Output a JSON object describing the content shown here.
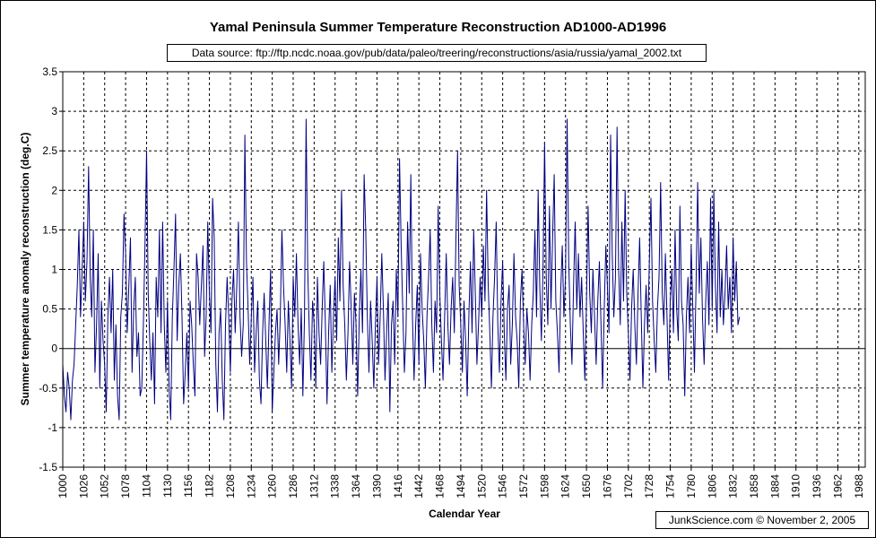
{
  "chart_data": {
    "type": "line",
    "title": "Yamal Peninsula Summer Temperature Reconstruction AD1000-AD1996",
    "data_source": "Data source: ftp://ftp.ncdc.noaa.gov/pub/data/paleo/treering/reconstructions/asia/russia/yamal_2002.txt",
    "credit": "JunkScience.com ©  November 2, 2005",
    "xlabel": "Calendar Year",
    "ylabel": "Summer temperature anomaly reconstruction (deg.C)",
    "xlim": [
      1000,
      1996
    ],
    "ylim": [
      -1.5,
      3.5
    ],
    "yticks": [
      -1.5,
      -1,
      -0.5,
      0,
      0.5,
      1,
      1.5,
      2,
      2.5,
      3,
      3.5
    ],
    "ytick_labels": [
      "-1.5",
      "-1",
      "-0.5",
      "0",
      "0.5",
      "1",
      "1.5",
      "2",
      "2.5",
      "3",
      "3.5"
    ],
    "xticks": [
      1000,
      1026,
      1052,
      1078,
      1104,
      1130,
      1156,
      1182,
      1208,
      1234,
      1260,
      1286,
      1312,
      1338,
      1364,
      1390,
      1416,
      1442,
      1468,
      1494,
      1520,
      1546,
      1572,
      1598,
      1624,
      1650,
      1676,
      1702,
      1728,
      1754,
      1780,
      1806,
      1832,
      1858,
      1884,
      1910,
      1936,
      1962,
      1988
    ],
    "xtick_labels": [
      "1000",
      "1026",
      "1052",
      "1078",
      "1104",
      "1130",
      "1156",
      "1182",
      "1208",
      "1234",
      "1260",
      "1286",
      "1312",
      "1338",
      "1364",
      "1390",
      "1416",
      "1442",
      "1468",
      "1494",
      "1520",
      "1546",
      "1572",
      "1598",
      "1624",
      "1650",
      "1676",
      "1702",
      "1728",
      "1754",
      "1780",
      "1806",
      "1832",
      "1858",
      "1884",
      "1910",
      "1936",
      "1962",
      "1988"
    ],
    "grid": true,
    "legend": "none",
    "series": [
      {
        "color": "#000080",
        "x_start": 1000,
        "x_step": 2,
        "values": [
          -0.2,
          -0.6,
          -0.8,
          -0.3,
          -0.5,
          -0.9,
          -0.4,
          -0.2,
          0.3,
          0.8,
          1.5,
          0.4,
          1.0,
          1.6,
          0.6,
          1.1,
          2.3,
          0.9,
          0.4,
          1.5,
          -0.3,
          0.3,
          1.2,
          -0.5,
          0.6,
          0.1,
          -0.2,
          -0.8,
          0.4,
          0.9,
          0.2,
          1.0,
          -0.4,
          0.3,
          -0.6,
          -0.9,
          0.4,
          0.7,
          1.7,
          1.2,
          0.2,
          0.8,
          1.4,
          -0.3,
          0.5,
          0.9,
          -0.1,
          0.2,
          -0.6,
          -0.5,
          0.3,
          1.3,
          2.5,
          0.7,
          0.1,
          -0.4,
          0.2,
          -0.7,
          0.9,
          0.4,
          1.5,
          0.2,
          1.6,
          0.3,
          -0.3,
          0.6,
          -0.5,
          -0.9,
          0.4,
          1.0,
          1.7,
          0.1,
          0.8,
          1.2,
          0.4,
          -0.7,
          -0.3,
          0.2,
          -0.5,
          0.6,
          0.3,
          -0.2,
          -0.6,
          1.2,
          0.9,
          0.3,
          0.8,
          1.3,
          -0.1,
          0.4,
          1.6,
          0.7,
          0.2,
          1.9,
          1.4,
          -0.2,
          -0.8,
          0.2,
          0.5,
          -0.4,
          -0.9,
          0.3,
          0.9,
          0.4,
          -0.3,
          0.6,
          1.0,
          0.2,
          0.8,
          1.6,
          0.4,
          -0.1,
          0.3,
          2.7,
          1.1,
          0.5,
          -0.2,
          0.4,
          0.9,
          -0.3,
          0.2,
          0.6,
          -0.4,
          -0.7,
          0.2,
          0.7,
          0.1,
          -0.5,
          0.3,
          1.0,
          -0.8,
          -0.3,
          0.2,
          0.5,
          -0.2,
          0.4,
          1.5,
          0.8,
          0.3,
          -0.3,
          0.6,
          0.1,
          -0.5,
          0.9,
          0.4,
          1.2,
          0.3,
          -0.2,
          0.5,
          -0.6,
          0.4,
          2.9,
          1.0,
          0.2,
          -0.4,
          0.6,
          0.3,
          -0.5,
          0.9,
          0.2,
          -0.2,
          0.5,
          1.1,
          0.3,
          -0.7,
          0.2,
          0.8,
          -0.3,
          0.4,
          0.9,
          0.1,
          1.4,
          0.6,
          2.0,
          0.8,
          0.3,
          -0.4,
          0.2,
          1.1,
          0.5,
          -0.2,
          0.7,
          0.3,
          -0.6,
          0.4,
          1.0,
          0.2,
          2.2,
          1.5,
          0.4,
          -0.3,
          0.6,
          0.1,
          -0.5,
          0.3,
          0.9,
          -0.2,
          0.4,
          1.2,
          0.5,
          -0.4,
          0.2,
          0.7,
          -0.8,
          0.3,
          0.6,
          -0.2,
          1.0,
          0.4,
          2.4,
          1.3,
          0.5,
          -0.3,
          0.2,
          1.6,
          0.7,
          2.2,
          0.4,
          -0.4,
          0.3,
          0.8,
          -0.2,
          1.2,
          0.5,
          0.1,
          -0.5,
          0.4,
          0.9,
          1.5,
          0.3,
          -0.3,
          0.6,
          0.2,
          1.8,
          0.7,
          0.1,
          -0.4,
          0.4,
          1.2,
          0.3,
          -0.2,
          0.5,
          0.9,
          0.2,
          1.4,
          2.5,
          0.8,
          0.3,
          -0.3,
          0.6,
          0.1,
          -0.6,
          0.4,
          1.1,
          0.2,
          1.5,
          0.7,
          -0.2,
          0.3,
          0.9,
          0.4,
          1.3,
          0.6,
          2.0,
          0.8,
          0.2,
          -0.5,
          0.4,
          0.9,
          1.6,
          0.3,
          -0.3,
          0.6,
          1.1,
          0.2,
          -0.4,
          0.5,
          0.8,
          -0.2,
          0.3,
          1.2,
          0.4,
          0.1,
          -0.5,
          0.6,
          1.0,
          0.3,
          -0.2,
          0.5,
          0.2,
          -0.4,
          0.3,
          0.7,
          1.5,
          0.4,
          2.0,
          0.8,
          0.1,
          1.0,
          2.6,
          0.9,
          0.3,
          1.8,
          0.5,
          1.4,
          2.2,
          0.6,
          0.2,
          -0.3,
          0.7,
          1.3,
          0.4,
          0.9,
          2.9,
          1.1,
          0.3,
          -0.2,
          0.8,
          1.6,
          0.5,
          1.2,
          0.4,
          0.9,
          0.2,
          -0.4,
          0.6,
          1.8,
          0.7,
          0.2,
          1.0,
          0.4,
          -0.2,
          0.6,
          1.1,
          0.3,
          -0.5,
          0.5,
          1.3,
          0.8,
          0.2,
          2.7,
          1.2,
          0.4,
          0.9,
          2.8,
          1.0,
          0.3,
          1.6,
          0.6,
          2.0,
          0.7,
          0.2,
          -0.4,
          0.5,
          1.0,
          0.3,
          -0.2,
          0.7,
          1.4,
          0.4,
          -0.5,
          0.3,
          0.8,
          0.2,
          1.1,
          1.9,
          0.6,
          0.1,
          -0.3,
          0.5,
          0.9,
          2.1,
          0.7,
          0.3,
          1.2,
          0.4,
          -0.4,
          0.6,
          1.0,
          0.2,
          1.5,
          0.5,
          0.1,
          1.8,
          0.6,
          0.3,
          -0.6,
          0.4,
          0.9,
          0.2,
          1.3,
          0.5,
          -0.3,
          0.8,
          2.1,
          0.7,
          1.4,
          0.4,
          -0.2,
          0.6,
          1.1,
          0.3,
          1.9,
          0.5,
          2.0,
          0.8,
          0.2,
          1.6,
          0.4,
          1.0,
          0.3,
          0.7,
          1.3,
          0.5,
          0.9,
          0.2,
          1.4,
          0.6,
          1.1,
          0.3,
          0.4
        ]
      }
    ]
  }
}
